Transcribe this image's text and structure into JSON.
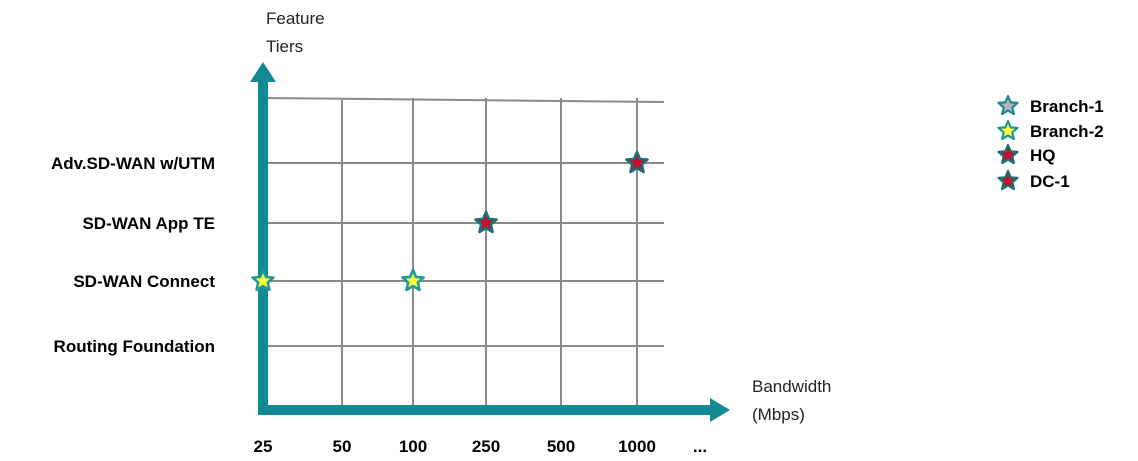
{
  "chart_data": {
    "type": "scatter",
    "x_categories": [
      "25",
      "50",
      "100",
      "250",
      "500",
      "1000",
      "..."
    ],
    "y_categories": [
      "Routing Foundation",
      "SD-WAN Connect",
      "SD-WAN App TE",
      "Adv.SD-WAN w/UTM"
    ],
    "xlabel": [
      "Bandwidth",
      "(Mbps)"
    ],
    "ylabel": [
      "Feature",
      "Tiers"
    ],
    "grid": true,
    "legend_position": "top-right",
    "series": [
      {
        "name": "Branch-1",
        "points": [
          {
            "x": "100",
            "y": "SD-WAN Connect"
          }
        ]
      },
      {
        "name": "Branch-2",
        "points": [
          {
            "x": "25",
            "y": "SD-WAN Connect"
          },
          {
            "x": "100",
            "y": "SD-WAN Connect"
          }
        ]
      },
      {
        "name": "HQ",
        "points": [
          {
            "x": "250",
            "y": "SD-WAN App TE"
          },
          {
            "x": "1000",
            "y": "Adv.SD-WAN w/UTM"
          }
        ]
      },
      {
        "name": "DC-1",
        "points": [
          {
            "x": "250",
            "y": "SD-WAN App TE"
          },
          {
            "x": "1000",
            "y": "Adv.SD-WAN w/UTM"
          }
        ]
      }
    ],
    "colors": {
      "axis": "#128a93",
      "grid": "#8a8a8a",
      "branch1": {
        "fill": "#b8b8c2",
        "stroke": "#1f8a92"
      },
      "branch2": {
        "fill": "#ffff3c",
        "stroke": "#1f9a9a"
      },
      "hq": {
        "fill": "#c8102e",
        "stroke": "#1e6e74"
      },
      "dc1": {
        "fill": "#c8102e",
        "stroke": "#1e6e74"
      }
    }
  }
}
